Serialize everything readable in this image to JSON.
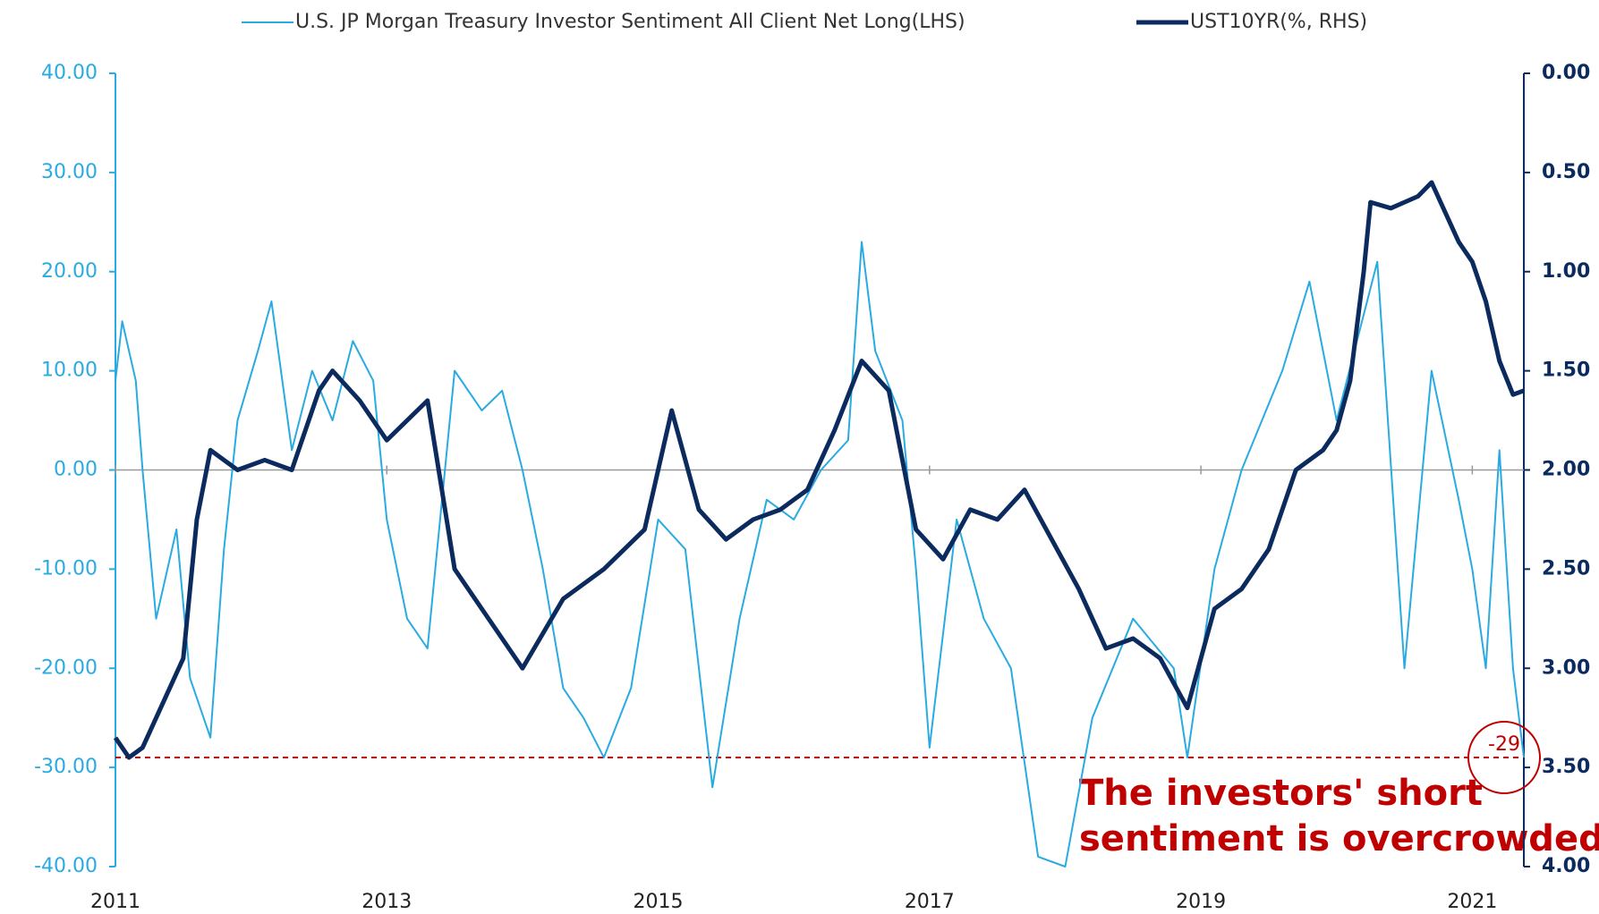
{
  "chart_data": {
    "type": "line",
    "series": [
      {
        "name": "U.S. JP Morgan Treasury Investor Sentiment All Client Net Long(LHS)",
        "color": "#29abe2",
        "axis": "y",
        "x": [
          2011.0,
          2011.05,
          2011.15,
          2011.2,
          2011.3,
          2011.45,
          2011.55,
          2011.7,
          2011.8,
          2011.9,
          2012.05,
          2012.15,
          2012.3,
          2012.45,
          2012.6,
          2012.75,
          2012.9,
          2013.0,
          2013.15,
          2013.3,
          2013.5,
          2013.7,
          2013.85,
          2014.0,
          2014.15,
          2014.3,
          2014.45,
          2014.6,
          2014.8,
          2015.0,
          2015.2,
          2015.4,
          2015.6,
          2015.8,
          2016.0,
          2016.2,
          2016.4,
          2016.5,
          2016.6,
          2016.8,
          2016.9,
          2017.0,
          2017.2,
          2017.4,
          2017.6,
          2017.8,
          2018.0,
          2018.2,
          2018.5,
          2018.8,
          2018.9,
          2019.1,
          2019.3,
          2019.6,
          2019.8,
          2020.0,
          2020.3,
          2020.5,
          2020.7,
          2020.9,
          2021.0,
          2021.1,
          2021.2,
          2021.3,
          2021.38
        ],
        "values": [
          9,
          15,
          9,
          0,
          -15,
          -6,
          -21,
          -27,
          -8,
          5,
          12,
          17,
          2,
          10,
          5,
          13,
          9,
          -5,
          -15,
          -18,
          10,
          6,
          8,
          0,
          -10,
          -22,
          -25,
          -29,
          -22,
          -5,
          -8,
          -32,
          -15,
          -3,
          -5,
          0,
          3,
          23,
          12,
          5,
          -10,
          -28,
          -5,
          -15,
          -20,
          -39,
          -40,
          -25,
          -15,
          -20,
          -29,
          -10,
          0,
          10,
          19,
          5,
          21,
          -20,
          10,
          -3,
          -10,
          -20,
          2,
          -20,
          -29
        ]
      },
      {
        "name": "UST10YR(%, RHS)",
        "color": "#0b2a5e",
        "axis": "y2",
        "x": [
          2011.0,
          2011.1,
          2011.2,
          2011.4,
          2011.5,
          2011.6,
          2011.7,
          2011.9,
          2012.1,
          2012.3,
          2012.5,
          2012.6,
          2012.8,
          2013.0,
          2013.3,
          2013.5,
          2013.7,
          2014.0,
          2014.3,
          2014.6,
          2014.9,
          2015.1,
          2015.3,
          2015.5,
          2015.7,
          2015.9,
          2016.1,
          2016.3,
          2016.5,
          2016.7,
          2016.9,
          2017.1,
          2017.3,
          2017.5,
          2017.7,
          2017.9,
          2018.1,
          2018.3,
          2018.5,
          2018.7,
          2018.9,
          2019.1,
          2019.3,
          2019.5,
          2019.7,
          2019.9,
          2020.0,
          2020.1,
          2020.2,
          2020.25,
          2020.4,
          2020.6,
          2020.7,
          2020.8,
          2020.9,
          2021.0,
          2021.1,
          2021.2,
          2021.3,
          2021.38
        ],
        "values": [
          3.35,
          3.45,
          3.4,
          3.1,
          2.95,
          2.25,
          1.9,
          2.0,
          1.95,
          2.0,
          1.6,
          1.5,
          1.65,
          1.85,
          1.65,
          2.5,
          2.7,
          3.0,
          2.65,
          2.5,
          2.3,
          1.7,
          2.2,
          2.35,
          2.25,
          2.2,
          2.1,
          1.8,
          1.45,
          1.6,
          2.3,
          2.45,
          2.2,
          2.25,
          2.1,
          2.35,
          2.6,
          2.9,
          2.85,
          2.95,
          3.2,
          2.7,
          2.6,
          2.4,
          2.0,
          1.9,
          1.8,
          1.55,
          1.0,
          0.65,
          0.68,
          0.62,
          0.55,
          0.7,
          0.85,
          0.95,
          1.15,
          1.45,
          1.62,
          1.6
        ]
      }
    ],
    "xlim": [
      2011,
      2021.38
    ],
    "xticks": [
      2011,
      2013,
      2015,
      2017,
      2019,
      2021
    ],
    "ylim": [
      -40,
      40
    ],
    "yticks": [
      {
        "value": -40,
        "label": "-40.00"
      },
      {
        "value": -30,
        "label": "-30.00"
      },
      {
        "value": -20,
        "label": "-20.00"
      },
      {
        "value": -10,
        "label": "-10.00"
      },
      {
        "value": 0,
        "label": "0.00"
      },
      {
        "value": 10,
        "label": "10.00"
      },
      {
        "value": 20,
        "label": "20.00"
      },
      {
        "value": 30,
        "label": "30.00"
      },
      {
        "value": 40,
        "label": "40.00"
      }
    ],
    "y2lim": [
      4,
      0
    ],
    "y2ticks": [
      {
        "value": 0,
        "label": "0.00"
      },
      {
        "value": 0.5,
        "label": "0.50"
      },
      {
        "value": 1,
        "label": "1.00"
      },
      {
        "value": 1.5,
        "label": "1.50"
      },
      {
        "value": 2,
        "label": "2.00"
      },
      {
        "value": 2.5,
        "label": "2.50"
      },
      {
        "value": 3,
        "label": "3.00"
      },
      {
        "value": 3.5,
        "label": "3.50"
      },
      {
        "value": 4,
        "label": "4.00"
      }
    ],
    "reference_line": -29,
    "reference_color": "#c00000",
    "annotation": [
      "The investors' short",
      "sentiment is overcrowded"
    ],
    "legend": "top"
  }
}
